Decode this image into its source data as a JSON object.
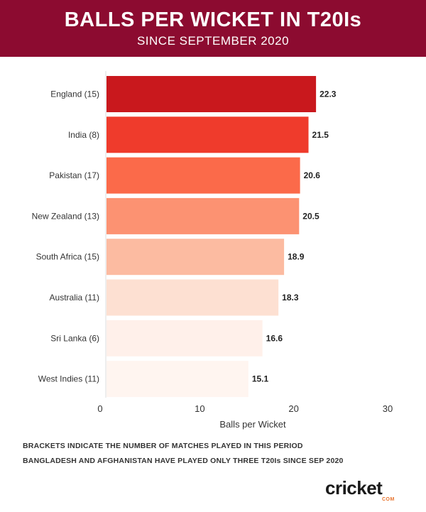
{
  "header": {
    "title": "BALLS PER WICKET IN T20Is",
    "subtitle": "SINCE SEPTEMBER 2020"
  },
  "chart_data": {
    "type": "bar",
    "orientation": "horizontal",
    "categories": [
      "England (15)",
      "India (8)",
      "Pakistan (17)",
      "New Zealand (13)",
      "South Africa (15)",
      "Australia (11)",
      "Sri Lanka (6)",
      "West Indies (11)"
    ],
    "values": [
      22.3,
      21.5,
      20.6,
      20.5,
      18.9,
      18.3,
      16.6,
      15.1
    ],
    "value_labels": [
      "22.3",
      "21.5",
      "20.6",
      "20.5",
      "18.9",
      "18.3",
      "16.6",
      "15.1"
    ],
    "colors": [
      "#c9181d",
      "#ef3b2c",
      "#fb6a4a",
      "#fc9272",
      "#fcbba1",
      "#fde0d2",
      "#fff0ea",
      "#fff5f0"
    ],
    "xlabel": "Balls per Wicket",
    "xlim": [
      0,
      30
    ],
    "xticks": [
      "0",
      "10",
      "20",
      "30"
    ],
    "grid": false
  },
  "notes": [
    "BRACKETS INDICATE THE NUMBER OF MATCHES PLAYED IN THIS PERIOD",
    "BANGLADESH AND AFGHANISTAN HAVE PLAYED ONLY THREE T20Is SINCE SEP 2020"
  ],
  "logo": {
    "main": "cricket",
    "sub": "COM",
    "accent": "#e8732c"
  }
}
